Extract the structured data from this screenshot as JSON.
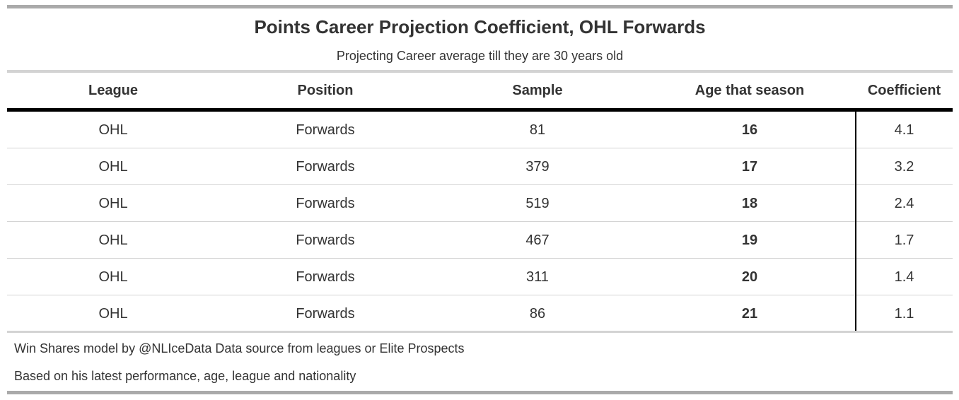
{
  "title": "Points Career Projection Coefficient, OHL Forwards",
  "subtitle": "Projecting Career average till they are 30 years old",
  "chart_data": {
    "type": "table",
    "columns": [
      "League",
      "Position",
      "Sample",
      "Age that season",
      "Coefficient"
    ],
    "rows": [
      [
        "OHL",
        "Forwards",
        "81",
        "16",
        "4.1"
      ],
      [
        "OHL",
        "Forwards",
        "379",
        "17",
        "3.2"
      ],
      [
        "OHL",
        "Forwards",
        "519",
        "18",
        "2.4"
      ],
      [
        "OHL",
        "Forwards",
        "467",
        "19",
        "1.7"
      ],
      [
        "OHL",
        "Forwards",
        "311",
        "20",
        "1.4"
      ],
      [
        "OHL",
        "Forwards",
        "86",
        "21",
        "1.1"
      ]
    ]
  },
  "footnotes": [
    "Win Shares model by @NLIceData Data source from leagues or Elite Prospects",
    "Based on his latest performance, age, league and nationality"
  ]
}
